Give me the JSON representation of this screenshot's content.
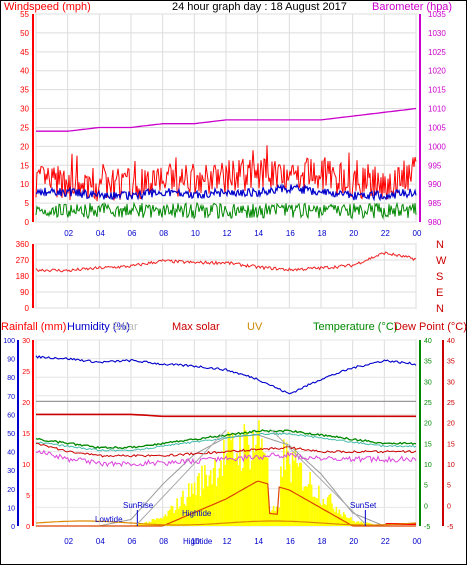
{
  "title": "24 hour graph day : 18 August 2017",
  "colors": {
    "wind": "#ff0000",
    "wind_dark": "#cc0000",
    "baro": "#cc00cc",
    "humidity": "#0000cc",
    "temperature": "#008800",
    "dewpoint": "#cc0000",
    "uv": "#cc8800",
    "solar": "#ffff00",
    "maxsolar": "#cc0000",
    "grid": "#aaaaaa",
    "frame": "#0000aa"
  },
  "panel1": {
    "left_label": "Windspeed (mph)",
    "right_label": "Barometer (hpa)",
    "left_ticks": [
      "55",
      "50",
      "45",
      "40",
      "35",
      "30",
      "25",
      "20",
      "15",
      "10",
      "5",
      "0"
    ],
    "right_ticks": [
      "1035",
      "1030",
      "1025",
      "1020",
      "1015",
      "1010",
      "1005",
      "1000",
      "995",
      "990",
      "985",
      "980"
    ]
  },
  "panel2": {
    "left_ticks": [
      "360",
      "270",
      "180",
      "90",
      "0"
    ],
    "compass": [
      "N",
      "W",
      "S",
      "E",
      "N"
    ]
  },
  "panel3": {
    "labels": {
      "rainfall": "Rainfall (mm)",
      "humidity": "Humidity (%)",
      "solar": "Solar",
      "maxsolar": "Max solar",
      "uv": "UV",
      "temperature": "Temperature (°C)",
      "dewpoint": "Dew Point (°C)"
    },
    "humidity_ticks": [
      "100",
      "90",
      "80",
      "70",
      "60",
      "50",
      "40",
      "30",
      "20",
      "10",
      "0"
    ],
    "rain_ticks": [
      "30",
      "25",
      "20",
      "15",
      "10",
      "5",
      "0"
    ],
    "temp_ticks": [
      "40",
      "35",
      "30",
      "25",
      "20",
      "15",
      "10",
      "5",
      "0",
      "-5"
    ],
    "annotations": {
      "lowtide": "Lowtide",
      "sunrise": "SunRise",
      "hightide": "Hightide",
      "sunset": "SunSet",
      "hightide_axis": "Hightide"
    }
  },
  "x_ticks": [
    "02",
    "04",
    "06",
    "08",
    "10",
    "12",
    "14",
    "16",
    "18",
    "20",
    "22",
    "00"
  ],
  "chart_data": [
    {
      "type": "line",
      "title": "24 hour graph day : 18 August 2017",
      "ylabel": "Windspeed (mph)",
      "y2label": "Barometer (hpa)",
      "ylim": [
        0,
        55
      ],
      "y2lim": [
        980,
        1035
      ],
      "x": [
        "00",
        "02",
        "04",
        "06",
        "08",
        "10",
        "12",
        "14",
        "16",
        "18",
        "20",
        "22",
        "00"
      ],
      "series": [
        {
          "name": "Barometer (hpa)",
          "values": [
            1004,
            1004,
            1005,
            1005,
            1006,
            1006,
            1007,
            1007,
            1007,
            1007,
            1008,
            1009,
            1010
          ]
        },
        {
          "name": "Windspeed (mph)",
          "values": [
            3,
            3,
            3,
            3,
            3,
            3,
            3,
            3,
            3,
            3,
            3,
            3,
            3
          ]
        },
        {
          "name": "Humidity (%)",
          "values": [
            8,
            8,
            7,
            7,
            8,
            7,
            8,
            8,
            9,
            8,
            7,
            7,
            8
          ]
        },
        {
          "name": "",
          "values": [
            11,
            10,
            10,
            10,
            11,
            11,
            12,
            13,
            13,
            12,
            11,
            10,
            13
          ]
        }
      ]
    },
    {
      "type": "scatter",
      "ylim": [
        0,
        360
      ],
      "x": [
        "00",
        "02",
        "04",
        "06",
        "08",
        "10",
        "12",
        "14",
        "16",
        "18",
        "20",
        "22",
        "00"
      ],
      "series": [
        {
          "name": "",
          "values": [
            215,
            210,
            225,
            235,
            265,
            255,
            255,
            230,
            215,
            225,
            240,
            310,
            275
          ]
        }
      ]
    },
    {
      "type": "line",
      "ylabel": "Humidity (%)",
      "y2label": "Temperature (°C)",
      "ylim": [
        0,
        100
      ],
      "y2lim": [
        -5,
        40
      ],
      "x": [
        "00",
        "02",
        "04",
        "06",
        "08",
        "10",
        "12",
        "14",
        "16",
        "18",
        "20",
        "22",
        "00"
      ],
      "series": [
        {
          "name": "Humidity (%)",
          "values": [
            91,
            90,
            88,
            89,
            87,
            86,
            84,
            79,
            71,
            79,
            85,
            89,
            87
          ]
        },
        {
          "name": "Max solar",
          "values": [
            60,
            60,
            60,
            60,
            59,
            59,
            59,
            59,
            59,
            59,
            59,
            59,
            59
          ]
        },
        {
          "name": "Temperature (°C)",
          "values": [
            16,
            15,
            14,
            14,
            15,
            16,
            17,
            18,
            18,
            17,
            16,
            15,
            15
          ]
        },
        {
          "name": "Dew Point (°C)",
          "values": [
            15,
            13,
            12,
            12,
            12,
            12.5,
            13,
            13.5,
            14,
            13,
            13,
            13,
            13
          ]
        },
        {
          "name": "UV",
          "values": [
            0,
            0,
            0,
            0,
            0,
            1.5,
            3,
            5,
            4,
            2,
            0,
            0,
            0
          ]
        },
        {
          "name": "Solar",
          "values": [
            0,
            0,
            0,
            0,
            5,
            25,
            45,
            55,
            40,
            20,
            3,
            0,
            0
          ]
        },
        {
          "name": "Rainfall (mm)",
          "values": [
            0,
            0,
            0,
            0,
            0,
            0,
            0,
            0,
            0,
            0,
            0,
            0.5,
            0.5
          ]
        }
      ]
    }
  ]
}
